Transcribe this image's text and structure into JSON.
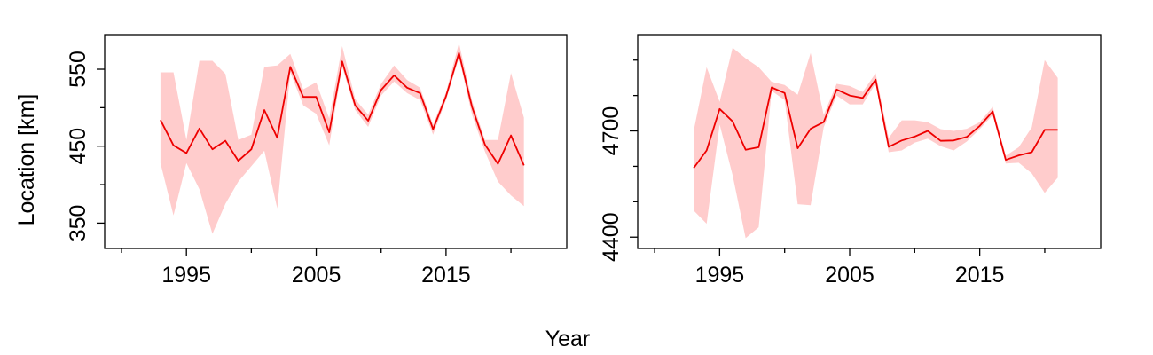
{
  "figure": {
    "ylabel": "Location [km]",
    "xlabel": "Year",
    "colors": {
      "line": "#ee0000",
      "band": "#ffcccc",
      "frame": "#000000"
    }
  },
  "chart_data": [
    {
      "type": "line",
      "panel": "left",
      "x": [
        1993,
        1994,
        1995,
        1996,
        1997,
        1998,
        1999,
        2000,
        2001,
        2002,
        2003,
        2004,
        2005,
        2006,
        2007,
        2008,
        2009,
        2010,
        2011,
        2012,
        2013,
        2014,
        2015,
        2016,
        2017,
        2018,
        2019,
        2020,
        2021
      ],
      "series": [
        {
          "values": [
            484,
            451,
            441,
            473,
            446,
            457,
            431,
            446,
            497,
            461,
            553,
            514,
            514,
            468,
            560,
            503,
            483,
            523,
            542,
            526,
            519,
            472,
            515,
            571,
            501,
            452,
            427,
            464,
            425
          ],
          "lower": [
            428,
            360,
            428,
            394,
            336,
            375,
            404,
            424,
            444,
            369,
            546,
            503,
            492,
            451,
            553,
            497,
            475,
            516,
            534,
            519,
            510,
            465,
            510,
            565,
            491,
            443,
            404,
            386,
            372
          ],
          "upper": [
            546,
            546,
            458,
            561,
            561,
            544,
            458,
            465,
            553,
            555,
            570,
            524,
            533,
            486,
            580,
            511,
            491,
            531,
            555,
            536,
            526,
            478,
            520,
            584,
            509,
            458,
            458,
            545,
            487
          ]
        }
      ],
      "xlim": [
        1988.7,
        2024.3
      ],
      "ylim": [
        317,
        595
      ],
      "x_ticks": [
        1995,
        2005,
        2015
      ],
      "x_minor_ticks": [
        1990,
        2000,
        2010,
        2020
      ],
      "y_ticks": [
        350,
        450,
        550
      ],
      "y_tick_labels": [
        "350",
        "450",
        "550"
      ],
      "y_minor_ticks": [
        400,
        500
      ],
      "grid": false,
      "legend": "none"
    },
    {
      "type": "line",
      "panel": "right",
      "x": [
        1993,
        1994,
        1995,
        1996,
        1997,
        1998,
        1999,
        2000,
        2001,
        2002,
        2003,
        2004,
        2005,
        2006,
        2007,
        2008,
        2009,
        2010,
        2011,
        2012,
        2013,
        2014,
        2015,
        2016,
        2017,
        2018,
        2019,
        2020,
        2021
      ],
      "series": [
        {
          "values": [
            4595,
            4645,
            4762,
            4727,
            4647,
            4654,
            4823,
            4807,
            4651,
            4706,
            4725,
            4817,
            4800,
            4793,
            4845,
            4655,
            4673,
            4684,
            4700,
            4672,
            4673,
            4683,
            4714,
            4755,
            4618,
            4631,
            4640,
            4703,
            4703
          ],
          "lower": [
            4475,
            4438,
            4718,
            4575,
            4397,
            4428,
            4813,
            4787,
            4493,
            4490,
            4710,
            4800,
            4775,
            4775,
            4835,
            4640,
            4645,
            4667,
            4678,
            4657,
            4645,
            4670,
            4705,
            4745,
            4608,
            4610,
            4580,
            4525,
            4568
          ],
          "upper": [
            4700,
            4880,
            4782,
            4935,
            4905,
            4880,
            4839,
            4830,
            4802,
            4920,
            4745,
            4833,
            4827,
            4810,
            4863,
            4680,
            4730,
            4730,
            4725,
            4705,
            4700,
            4706,
            4725,
            4768,
            4630,
            4654,
            4710,
            4900,
            4850
          ]
        }
      ],
      "xlim": [
        1988.7,
        2024.3
      ],
      "ylim": [
        4368,
        4972
      ],
      "x_ticks": [
        1995,
        2005,
        2015
      ],
      "x_minor_ticks": [
        1990,
        2000,
        2010,
        2020
      ],
      "y_ticks": [
        4400,
        4700
      ],
      "y_tick_labels": [
        "4400",
        "4700"
      ],
      "y_minor_ticks": [
        4500,
        4600,
        4800,
        4900
      ],
      "grid": false,
      "legend": "none"
    }
  ]
}
